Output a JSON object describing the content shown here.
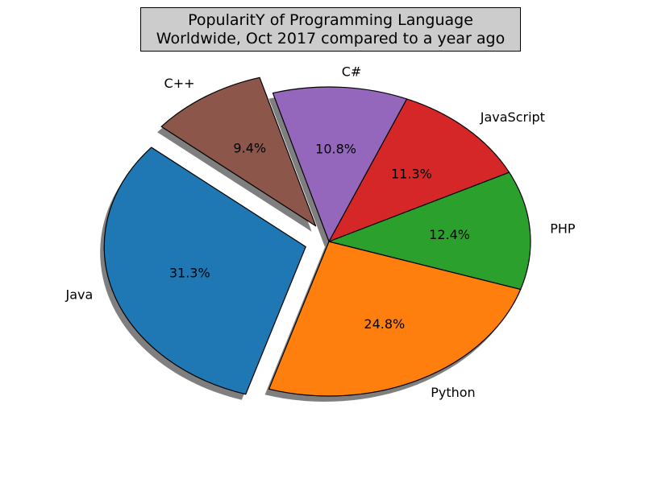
{
  "chart_data": {
    "type": "pie",
    "title": [
      "PopularitY of Programming Language",
      "Worldwide, Oct 2017 compared to a year ago"
    ],
    "slices": [
      {
        "label": "Java",
        "value": 31.3,
        "pct_label": "31.3%",
        "color": "#1f77b4",
        "exploded": true
      },
      {
        "label": "Python",
        "value": 24.8,
        "pct_label": "24.8%",
        "color": "#ff7f0e",
        "exploded": false
      },
      {
        "label": "PHP",
        "value": 12.4,
        "pct_label": "12.4%",
        "color": "#2ca02c",
        "exploded": false
      },
      {
        "label": "JavaScript",
        "value": 11.3,
        "pct_label": "11.3%",
        "color": "#d62728",
        "exploded": false
      },
      {
        "label": "C#",
        "value": 10.8,
        "pct_label": "10.8%",
        "color": "#9467bd",
        "exploded": false
      },
      {
        "label": "C++",
        "value": 9.4,
        "pct_label": "9.4%",
        "color": "#8c564b",
        "exploded": true
      }
    ],
    "shadow": true,
    "start_angle_deg": 140
  }
}
